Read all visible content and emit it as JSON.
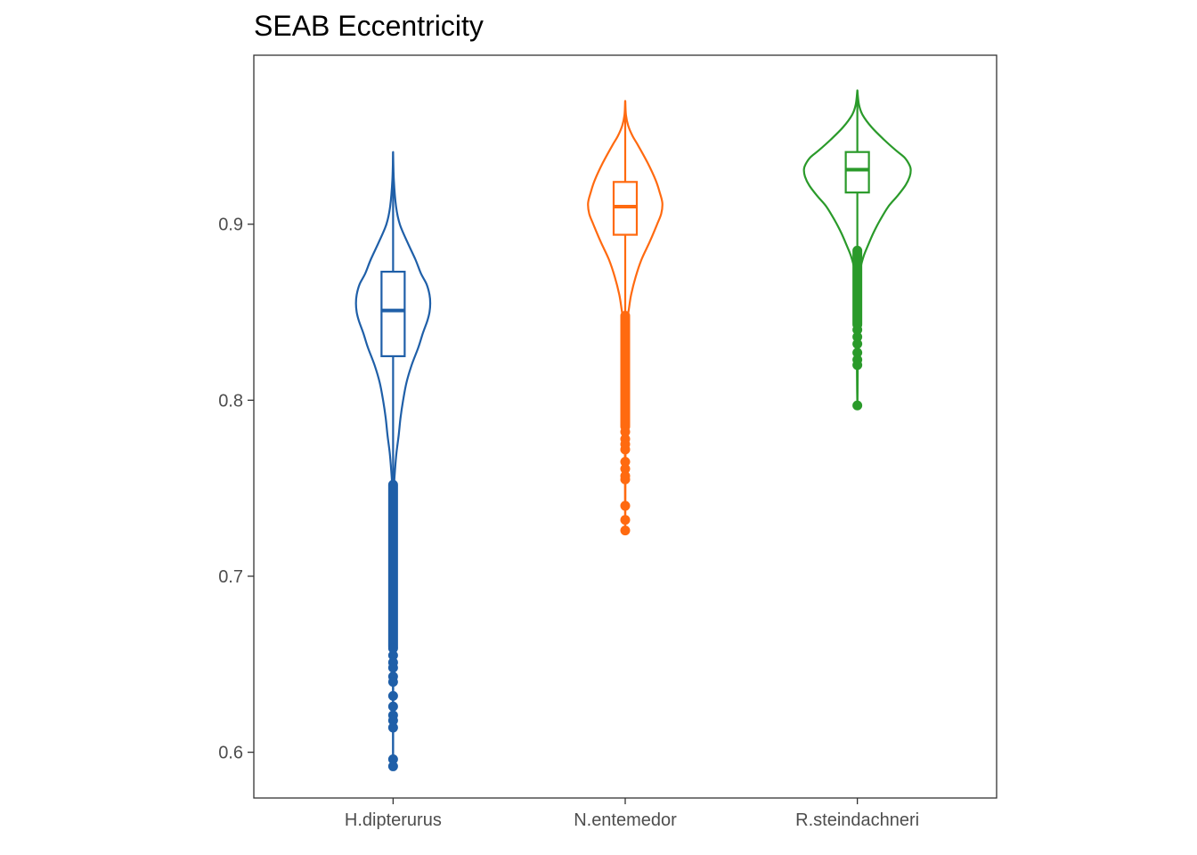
{
  "chart_data": {
    "type": "violin",
    "title": "SEAB Eccentricity",
    "xlabel": "",
    "ylabel": "",
    "categories": [
      "H.dipterurus",
      "N.entemedor",
      "R.steindachneri"
    ],
    "y_ticks": [
      0.6,
      0.7,
      0.8,
      0.9
    ],
    "y_tick_labels": [
      "0.6",
      "0.7",
      "0.8",
      "0.9"
    ],
    "ylim": [
      0.574,
      0.996
    ],
    "grid": false,
    "legend": "none",
    "series": [
      {
        "category": "H.dipterurus",
        "color": "#1f5fa8",
        "violin_max_half_width": 0.16,
        "density": [
          [
            0.941,
            0.0
          ],
          [
            0.925,
            0.02
          ],
          [
            0.91,
            0.08
          ],
          [
            0.9,
            0.18
          ],
          [
            0.89,
            0.38
          ],
          [
            0.88,
            0.6
          ],
          [
            0.872,
            0.75
          ],
          [
            0.866,
            0.9
          ],
          [
            0.86,
            0.98
          ],
          [
            0.855,
            1.0
          ],
          [
            0.85,
            0.98
          ],
          [
            0.845,
            0.92
          ],
          [
            0.838,
            0.8
          ],
          [
            0.83,
            0.68
          ],
          [
            0.82,
            0.5
          ],
          [
            0.81,
            0.36
          ],
          [
            0.8,
            0.27
          ],
          [
            0.79,
            0.2
          ],
          [
            0.78,
            0.15
          ],
          [
            0.77,
            0.09
          ],
          [
            0.76,
            0.05
          ],
          [
            0.75,
            0.02
          ],
          [
            0.74,
            0.012
          ],
          [
            0.72,
            0.008
          ],
          [
            0.7,
            0.006
          ],
          [
            0.68,
            0.005
          ],
          [
            0.66,
            0.004
          ],
          [
            0.64,
            0.003
          ],
          [
            0.62,
            0.002
          ],
          [
            0.6,
            0.001
          ],
          [
            0.592,
            0.0
          ]
        ],
        "box": {
          "lower_whisker": 0.751,
          "q1": 0.825,
          "median": 0.851,
          "q3": 0.873,
          "upper_whisker": 0.941
        },
        "outliers_dense_range": [
          0.66,
          0.752
        ],
        "outliers": [
          0.659,
          0.655,
          0.651,
          0.648,
          0.643,
          0.64,
          0.632,
          0.626,
          0.621,
          0.618,
          0.614,
          0.596,
          0.592
        ]
      },
      {
        "category": "N.entemedor",
        "color": "#ff6a10",
        "violin_max_half_width": 0.16,
        "density": [
          [
            0.97,
            0.0
          ],
          [
            0.962,
            0.02
          ],
          [
            0.956,
            0.08
          ],
          [
            0.95,
            0.2
          ],
          [
            0.945,
            0.34
          ],
          [
            0.935,
            0.6
          ],
          [
            0.925,
            0.82
          ],
          [
            0.918,
            0.93
          ],
          [
            0.912,
            1.0
          ],
          [
            0.906,
            0.97
          ],
          [
            0.9,
            0.86
          ],
          [
            0.89,
            0.66
          ],
          [
            0.88,
            0.44
          ],
          [
            0.87,
            0.28
          ],
          [
            0.86,
            0.16
          ],
          [
            0.852,
            0.1
          ],
          [
            0.845,
            0.055
          ],
          [
            0.835,
            0.035
          ],
          [
            0.82,
            0.025
          ],
          [
            0.8,
            0.015
          ],
          [
            0.78,
            0.01
          ],
          [
            0.76,
            0.006
          ],
          [
            0.74,
            0.003
          ],
          [
            0.726,
            0.0
          ]
        ],
        "box": {
          "lower_whisker": 0.848,
          "q1": 0.894,
          "median": 0.91,
          "q3": 0.924,
          "upper_whisker": 0.97
        },
        "outliers_dense_range": [
          0.785,
          0.848
        ],
        "outliers": [
          0.782,
          0.778,
          0.775,
          0.772,
          0.765,
          0.761,
          0.757,
          0.755,
          0.74,
          0.732,
          0.726
        ]
      },
      {
        "category": "R.steindachneri",
        "color": "#2a9a2a",
        "violin_max_half_width": 0.23,
        "density": [
          [
            0.976,
            0.0
          ],
          [
            0.968,
            0.03
          ],
          [
            0.962,
            0.1
          ],
          [
            0.955,
            0.27
          ],
          [
            0.948,
            0.5
          ],
          [
            0.942,
            0.72
          ],
          [
            0.938,
            0.88
          ],
          [
            0.934,
            0.97
          ],
          [
            0.931,
            1.0
          ],
          [
            0.927,
            0.98
          ],
          [
            0.922,
            0.9
          ],
          [
            0.916,
            0.75
          ],
          [
            0.91,
            0.58
          ],
          [
            0.902,
            0.42
          ],
          [
            0.895,
            0.3
          ],
          [
            0.888,
            0.2
          ],
          [
            0.882,
            0.12
          ],
          [
            0.875,
            0.06
          ],
          [
            0.865,
            0.035
          ],
          [
            0.85,
            0.02
          ],
          [
            0.835,
            0.012
          ],
          [
            0.82,
            0.008
          ],
          [
            0.805,
            0.004
          ],
          [
            0.797,
            0.0
          ]
        ],
        "box": {
          "lower_whisker": 0.885,
          "q1": 0.918,
          "median": 0.931,
          "q3": 0.941,
          "upper_whisker": 0.976
        },
        "outliers_dense_range": [
          0.843,
          0.885
        ],
        "outliers": [
          0.84,
          0.836,
          0.832,
          0.827,
          0.823,
          0.82,
          0.797
        ]
      }
    ]
  }
}
